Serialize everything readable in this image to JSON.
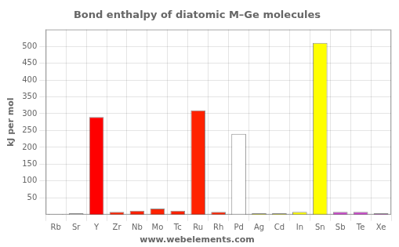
{
  "chart_data": {
    "type": "bar",
    "title": "Bond enthalpy of diatomic M–Ge molecules",
    "ylabel": "kJ per mol",
    "categories": [
      "Rb",
      "Sr",
      "Y",
      "Zr",
      "Nb",
      "Mo",
      "Tc",
      "Ru",
      "Rh",
      "Pd",
      "Ag",
      "Cd",
      "In",
      "Sn",
      "Sb",
      "Te",
      "Xe"
    ],
    "values": [
      2,
      4,
      290,
      8,
      12,
      18,
      12,
      310,
      8,
      240,
      4,
      4,
      8,
      510,
      8,
      8,
      4
    ],
    "colors": [
      "#ffffff",
      "#ffffff",
      "#ff0000",
      "#ff2200",
      "#ff2200",
      "#ff2200",
      "#ff2200",
      "#ff2200",
      "#ff2200",
      "#ffffff",
      "#ffff00",
      "#ffff00",
      "#ffff00",
      "#ffff00",
      "#cc44cc",
      "#cc44cc",
      "#cc44cc"
    ],
    "ylim": [
      0,
      550
    ],
    "yticks": [
      50,
      100,
      150,
      200,
      250,
      300,
      350,
      400,
      450,
      500
    ],
    "grid": true,
    "annotations": [
      "www.webelements.com"
    ]
  }
}
